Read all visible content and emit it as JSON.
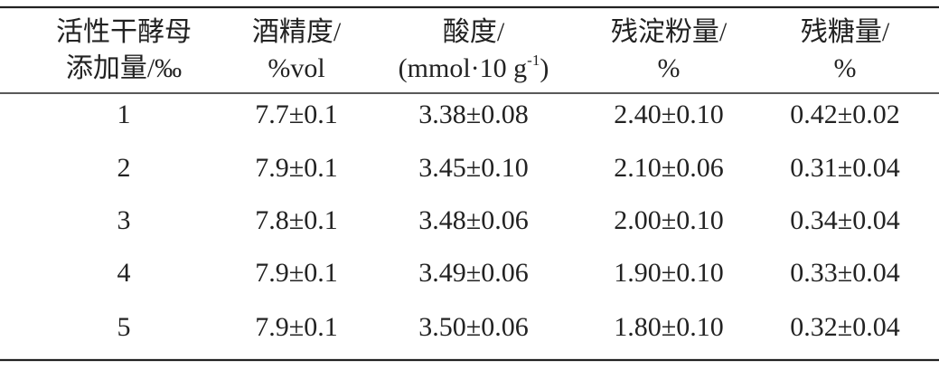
{
  "table": {
    "header": [
      [
        [
          "活性干酵母"
        ],
        [
          "添加量/‰"
        ]
      ],
      [
        [
          "酒精度/"
        ],
        [
          "%vol"
        ]
      ],
      [
        [
          "酸度/"
        ],
        [
          "(mmol·10 g",
          "-1",
          ")"
        ]
      ],
      [
        [
          "残淀粉量/"
        ],
        [
          "%"
        ]
      ],
      [
        [
          "残糖量/"
        ],
        [
          "%"
        ]
      ]
    ],
    "rows": [
      [
        "1",
        "7.7±0.1",
        "3.38±0.08",
        "2.40±0.10",
        "0.42±0.02"
      ],
      [
        "2",
        "7.9±0.1",
        "3.45±0.10",
        "2.10±0.06",
        "0.31±0.04"
      ],
      [
        "3",
        "7.8±0.1",
        "3.48±0.06",
        "2.00±0.10",
        "0.34±0.04"
      ],
      [
        "4",
        "7.9±0.1",
        "3.49±0.06",
        "1.90±0.10",
        "0.33±0.04"
      ],
      [
        "5",
        "7.9±0.1",
        "3.50±0.06",
        "1.80±0.10",
        "0.32±0.04"
      ]
    ]
  }
}
